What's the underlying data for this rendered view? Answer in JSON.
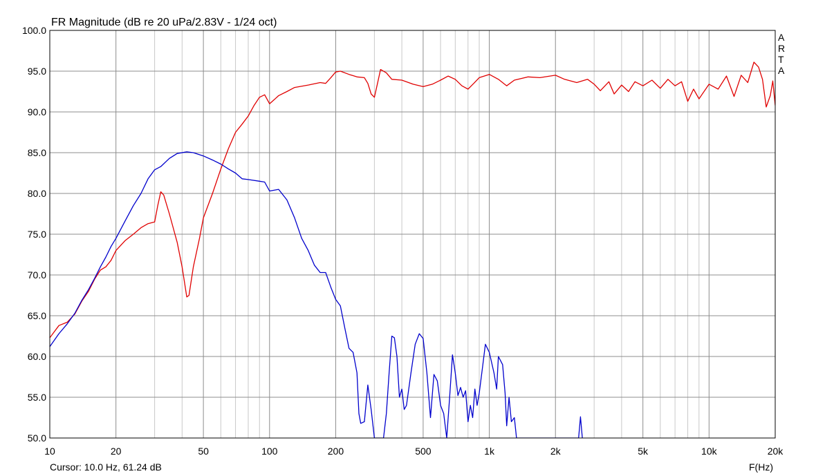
{
  "chart_data": {
    "type": "line",
    "title": "FR Magnitude (dB re 20 uPa/2.83V - 1/24 oct)",
    "xlabel": "F(Hz)",
    "ylabel": "",
    "x_scale": "log",
    "xlim": [
      10,
      20000
    ],
    "ylim": [
      50,
      100
    ],
    "grid": true,
    "x_tick_values": [
      10,
      20,
      50,
      100,
      200,
      500,
      1000,
      2000,
      5000,
      10000,
      20000
    ],
    "x_tick_labels": [
      "10",
      "20",
      "50",
      "100",
      "200",
      "500",
      "1k",
      "2k",
      "5k",
      "10k",
      "20k"
    ],
    "y_tick_values": [
      50,
      55,
      60,
      65,
      70,
      75,
      80,
      85,
      90,
      95,
      100
    ],
    "y_tick_labels": [
      "50.0",
      "55.0",
      "60.0",
      "65.0",
      "70.0",
      "75.0",
      "80.0",
      "85.0",
      "90.0",
      "95.0",
      "100.0"
    ],
    "series": [
      {
        "color": "#e00000",
        "points": [
          [
            10,
            62.3
          ],
          [
            11,
            63.8
          ],
          [
            12,
            64.2
          ],
          [
            13,
            65.2
          ],
          [
            14,
            66.8
          ],
          [
            15,
            68.0
          ],
          [
            16,
            69.5
          ],
          [
            17,
            70.6
          ],
          [
            18,
            71.0
          ],
          [
            19,
            71.8
          ],
          [
            20,
            73.0
          ],
          [
            22,
            74.2
          ],
          [
            24,
            75.0
          ],
          [
            26,
            75.8
          ],
          [
            28,
            76.3
          ],
          [
            30,
            76.5
          ],
          [
            31,
            78.5
          ],
          [
            32,
            80.2
          ],
          [
            33,
            79.8
          ],
          [
            35,
            77.5
          ],
          [
            38,
            74.0
          ],
          [
            40,
            71.0
          ],
          [
            42,
            67.3
          ],
          [
            43,
            67.5
          ],
          [
            45,
            71.0
          ],
          [
            48,
            74.5
          ],
          [
            50,
            77.0
          ],
          [
            55,
            80.0
          ],
          [
            60,
            83.0
          ],
          [
            65,
            85.5
          ],
          [
            70,
            87.5
          ],
          [
            75,
            88.5
          ],
          [
            80,
            89.5
          ],
          [
            85,
            90.8
          ],
          [
            90,
            91.8
          ],
          [
            95,
            92.1
          ],
          [
            100,
            91.0
          ],
          [
            105,
            91.5
          ],
          [
            110,
            92.0
          ],
          [
            120,
            92.5
          ],
          [
            130,
            93.0
          ],
          [
            150,
            93.3
          ],
          [
            170,
            93.6
          ],
          [
            180,
            93.5
          ],
          [
            190,
            94.2
          ],
          [
            200,
            94.9
          ],
          [
            210,
            95.0
          ],
          [
            230,
            94.6
          ],
          [
            250,
            94.3
          ],
          [
            270,
            94.2
          ],
          [
            280,
            93.5
          ],
          [
            290,
            92.2
          ],
          [
            300,
            91.8
          ],
          [
            310,
            93.5
          ],
          [
            320,
            95.2
          ],
          [
            340,
            94.8
          ],
          [
            360,
            94.0
          ],
          [
            400,
            93.9
          ],
          [
            450,
            93.4
          ],
          [
            500,
            93.1
          ],
          [
            550,
            93.4
          ],
          [
            600,
            93.9
          ],
          [
            650,
            94.4
          ],
          [
            700,
            94.0
          ],
          [
            750,
            93.2
          ],
          [
            800,
            92.8
          ],
          [
            850,
            93.5
          ],
          [
            900,
            94.2
          ],
          [
            1000,
            94.6
          ],
          [
            1100,
            94.0
          ],
          [
            1200,
            93.2
          ],
          [
            1300,
            93.9
          ],
          [
            1500,
            94.3
          ],
          [
            1700,
            94.2
          ],
          [
            2000,
            94.5
          ],
          [
            2200,
            94.0
          ],
          [
            2500,
            93.6
          ],
          [
            2800,
            94.0
          ],
          [
            3000,
            93.4
          ],
          [
            3200,
            92.6
          ],
          [
            3500,
            93.7
          ],
          [
            3700,
            92.2
          ],
          [
            4000,
            93.3
          ],
          [
            4300,
            92.5
          ],
          [
            4600,
            93.7
          ],
          [
            5000,
            93.2
          ],
          [
            5500,
            93.9
          ],
          [
            6000,
            92.9
          ],
          [
            6500,
            94.0
          ],
          [
            7000,
            93.2
          ],
          [
            7500,
            93.7
          ],
          [
            8000,
            91.3
          ],
          [
            8500,
            92.8
          ],
          [
            9000,
            91.6
          ],
          [
            10000,
            93.4
          ],
          [
            11000,
            92.8
          ],
          [
            12000,
            94.4
          ],
          [
            13000,
            91.9
          ],
          [
            14000,
            94.5
          ],
          [
            15000,
            93.6
          ],
          [
            16000,
            96.1
          ],
          [
            16800,
            95.5
          ],
          [
            17500,
            94.0
          ],
          [
            18200,
            90.6
          ],
          [
            19000,
            92.0
          ],
          [
            19500,
            93.8
          ],
          [
            20000,
            90.8
          ]
        ]
      },
      {
        "color": "#0000cc",
        "points": [
          [
            10,
            61.2
          ],
          [
            11,
            62.8
          ],
          [
            12,
            64.0
          ],
          [
            13,
            65.3
          ],
          [
            14,
            66.9
          ],
          [
            15,
            68.2
          ],
          [
            16,
            69.6
          ],
          [
            17,
            71.0
          ],
          [
            18,
            72.2
          ],
          [
            19,
            73.5
          ],
          [
            20,
            74.5
          ],
          [
            22,
            76.6
          ],
          [
            24,
            78.5
          ],
          [
            26,
            80.0
          ],
          [
            28,
            81.8
          ],
          [
            30,
            82.9
          ],
          [
            32,
            83.3
          ],
          [
            35,
            84.3
          ],
          [
            38,
            84.9
          ],
          [
            42,
            85.1
          ],
          [
            45,
            85.0
          ],
          [
            50,
            84.6
          ],
          [
            55,
            84.1
          ],
          [
            60,
            83.6
          ],
          [
            65,
            83.0
          ],
          [
            70,
            82.5
          ],
          [
            75,
            81.8
          ],
          [
            80,
            81.7
          ],
          [
            90,
            81.5
          ],
          [
            95,
            81.4
          ],
          [
            100,
            80.3
          ],
          [
            110,
            80.5
          ],
          [
            120,
            79.2
          ],
          [
            130,
            77.0
          ],
          [
            140,
            74.5
          ],
          [
            150,
            73.0
          ],
          [
            160,
            71.2
          ],
          [
            170,
            70.3
          ],
          [
            180,
            70.3
          ],
          [
            190,
            68.5
          ],
          [
            200,
            67.0
          ],
          [
            210,
            66.2
          ],
          [
            220,
            63.5
          ],
          [
            230,
            61.0
          ],
          [
            240,
            60.5
          ],
          [
            250,
            58.0
          ],
          [
            255,
            53.0
          ],
          [
            260,
            51.8
          ],
          [
            270,
            52.0
          ],
          [
            280,
            56.5
          ],
          [
            290,
            53.5
          ],
          [
            300,
            50.0
          ],
          [
            330,
            50.0
          ],
          [
            340,
            53.0
          ],
          [
            350,
            58.0
          ],
          [
            360,
            62.5
          ],
          [
            370,
            62.3
          ],
          [
            380,
            60.0
          ],
          [
            390,
            55.0
          ],
          [
            400,
            56.0
          ],
          [
            410,
            53.5
          ],
          [
            420,
            54.0
          ],
          [
            440,
            58.0
          ],
          [
            460,
            61.5
          ],
          [
            480,
            62.8
          ],
          [
            500,
            62.2
          ],
          [
            520,
            58.0
          ],
          [
            540,
            52.5
          ],
          [
            560,
            57.8
          ],
          [
            580,
            57.0
          ],
          [
            600,
            54.0
          ],
          [
            620,
            53.0
          ],
          [
            640,
            50.0
          ],
          [
            660,
            55.0
          ],
          [
            680,
            60.2
          ],
          [
            700,
            58.0
          ],
          [
            720,
            55.2
          ],
          [
            740,
            56.2
          ],
          [
            760,
            55.0
          ],
          [
            780,
            55.8
          ],
          [
            800,
            52.0
          ],
          [
            820,
            54.0
          ],
          [
            840,
            52.5
          ],
          [
            860,
            56.0
          ],
          [
            880,
            54.0
          ],
          [
            900,
            55.5
          ],
          [
            930,
            58.5
          ],
          [
            960,
            61.5
          ],
          [
            1000,
            60.5
          ],
          [
            1050,
            58.0
          ],
          [
            1080,
            56.0
          ],
          [
            1100,
            60.0
          ],
          [
            1150,
            59.0
          ],
          [
            1180,
            55.5
          ],
          [
            1200,
            51.5
          ],
          [
            1230,
            55.0
          ],
          [
            1260,
            52.0
          ],
          [
            1300,
            52.5
          ],
          [
            1330,
            50.0
          ],
          [
            2550,
            50.0
          ],
          [
            2600,
            52.6
          ],
          [
            2650,
            50.0
          ]
        ]
      }
    ]
  },
  "status": {
    "cursor": "Cursor: 10.0 Hz, 61.24 dB"
  },
  "brand": [
    "A",
    "R",
    "T",
    "A"
  ]
}
